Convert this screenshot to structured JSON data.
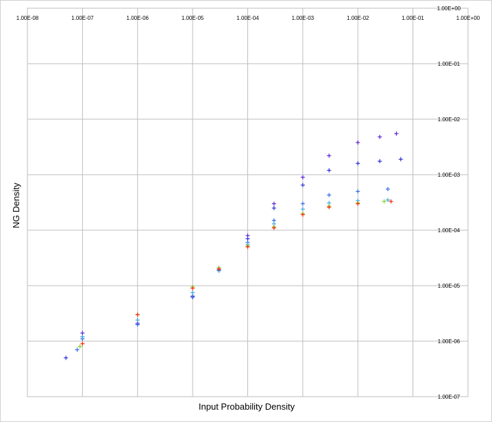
{
  "chart_data": {
    "type": "scatter",
    "title": "",
    "xlabel": "Input Probability Density",
    "ylabel": "NG Density",
    "x_scale": "log",
    "y_scale": "log",
    "xlim": [
      1e-08,
      1
    ],
    "ylim": [
      1e-07,
      1
    ],
    "grid": true,
    "legend": "none",
    "x_tick_labels": [
      "1.00E-08",
      "1.00E-07",
      "1.00E-06",
      "1.00E-05",
      "1.00E-04",
      "1.00E-03",
      "1.00E-02",
      "1.00E-01",
      "1.00E+00"
    ],
    "y_tick_labels": [
      "1.00E-07",
      "1.00E-06",
      "1.00E-05",
      "1.00E-04",
      "1.00E-03",
      "1.00E-02",
      "1.00E-01",
      "1.00E+00"
    ],
    "marker": "+",
    "colors": [
      "#5a1fd6",
      "#2a2ad9",
      "#2e6ae6",
      "#3aa8e0",
      "#7ed321",
      "#ff2200"
    ],
    "series": [
      {
        "color": "#5a1fd6",
        "points": [
          [
            1e-07,
            1.4e-06
          ],
          [
            1e-06,
            2.1e-06
          ],
          [
            1e-05,
            6.5e-06
          ],
          [
            3e-05,
            2e-05
          ],
          [
            0.0001,
            8e-05
          ],
          [
            0.0003,
            0.0003
          ],
          [
            0.001,
            0.0009
          ],
          [
            0.003,
            0.0022
          ],
          [
            0.01,
            0.0038
          ],
          [
            0.025,
            0.0048
          ],
          [
            0.05,
            0.0055
          ]
        ]
      },
      {
        "color": "#2a2ad9",
        "points": [
          [
            5e-08,
            5e-07
          ],
          [
            1e-07,
            1.2e-06
          ],
          [
            1e-06,
            2e-06
          ],
          [
            1e-05,
            6.2e-06
          ],
          [
            3e-05,
            1.9e-05
          ],
          [
            0.0001,
            7e-05
          ],
          [
            0.0003,
            0.00025
          ],
          [
            0.001,
            0.00065
          ],
          [
            0.003,
            0.0012
          ],
          [
            0.01,
            0.0016
          ],
          [
            0.025,
            0.00175
          ],
          [
            0.06,
            0.0019
          ]
        ]
      },
      {
        "color": "#2e6ae6",
        "points": [
          [
            8e-08,
            7e-07
          ],
          [
            1e-07,
            1.1e-06
          ],
          [
            1e-06,
            2e-06
          ],
          [
            1e-05,
            6.5e-06
          ],
          [
            3e-05,
            1.9e-05
          ],
          [
            0.0001,
            6e-05
          ],
          [
            0.0003,
            0.00015
          ],
          [
            0.001,
            0.0003
          ],
          [
            0.003,
            0.00043
          ],
          [
            0.01,
            0.0005
          ],
          [
            0.035,
            0.00055
          ]
        ]
      },
      {
        "color": "#3aa8e0",
        "points": [
          [
            1e-07,
            1.2e-06
          ],
          [
            1e-06,
            2.4e-06
          ],
          [
            1e-05,
            7.5e-06
          ],
          [
            3e-05,
            1.85e-05
          ],
          [
            0.0001,
            5.5e-05
          ],
          [
            0.0003,
            0.00013
          ],
          [
            0.001,
            0.00024
          ],
          [
            0.003,
            0.00031
          ],
          [
            0.01,
            0.00034
          ],
          [
            0.035,
            0.00035
          ]
        ]
      },
      {
        "color": "#7ed321",
        "points": [
          [
            9e-08,
            8e-07
          ],
          [
            1e-06,
            3e-06
          ],
          [
            1e-05,
            9.5e-06
          ],
          [
            3e-05,
            2.1e-05
          ],
          [
            0.0001,
            5.2e-05
          ],
          [
            0.0003,
            0.000115
          ],
          [
            0.001,
            0.0002
          ],
          [
            0.003,
            0.00027
          ],
          [
            0.01,
            0.00031
          ],
          [
            0.03,
            0.00033
          ]
        ]
      },
      {
        "color": "#ff2200",
        "points": [
          [
            1e-07,
            9e-07
          ],
          [
            1e-06,
            3e-06
          ],
          [
            1e-05,
            9e-06
          ],
          [
            3e-05,
            2e-05
          ],
          [
            0.0001,
            5e-05
          ],
          [
            0.0003,
            0.00011
          ],
          [
            0.001,
            0.00019
          ],
          [
            0.003,
            0.00026
          ],
          [
            0.01,
            0.0003
          ],
          [
            0.04,
            0.00033
          ]
        ]
      }
    ]
  }
}
